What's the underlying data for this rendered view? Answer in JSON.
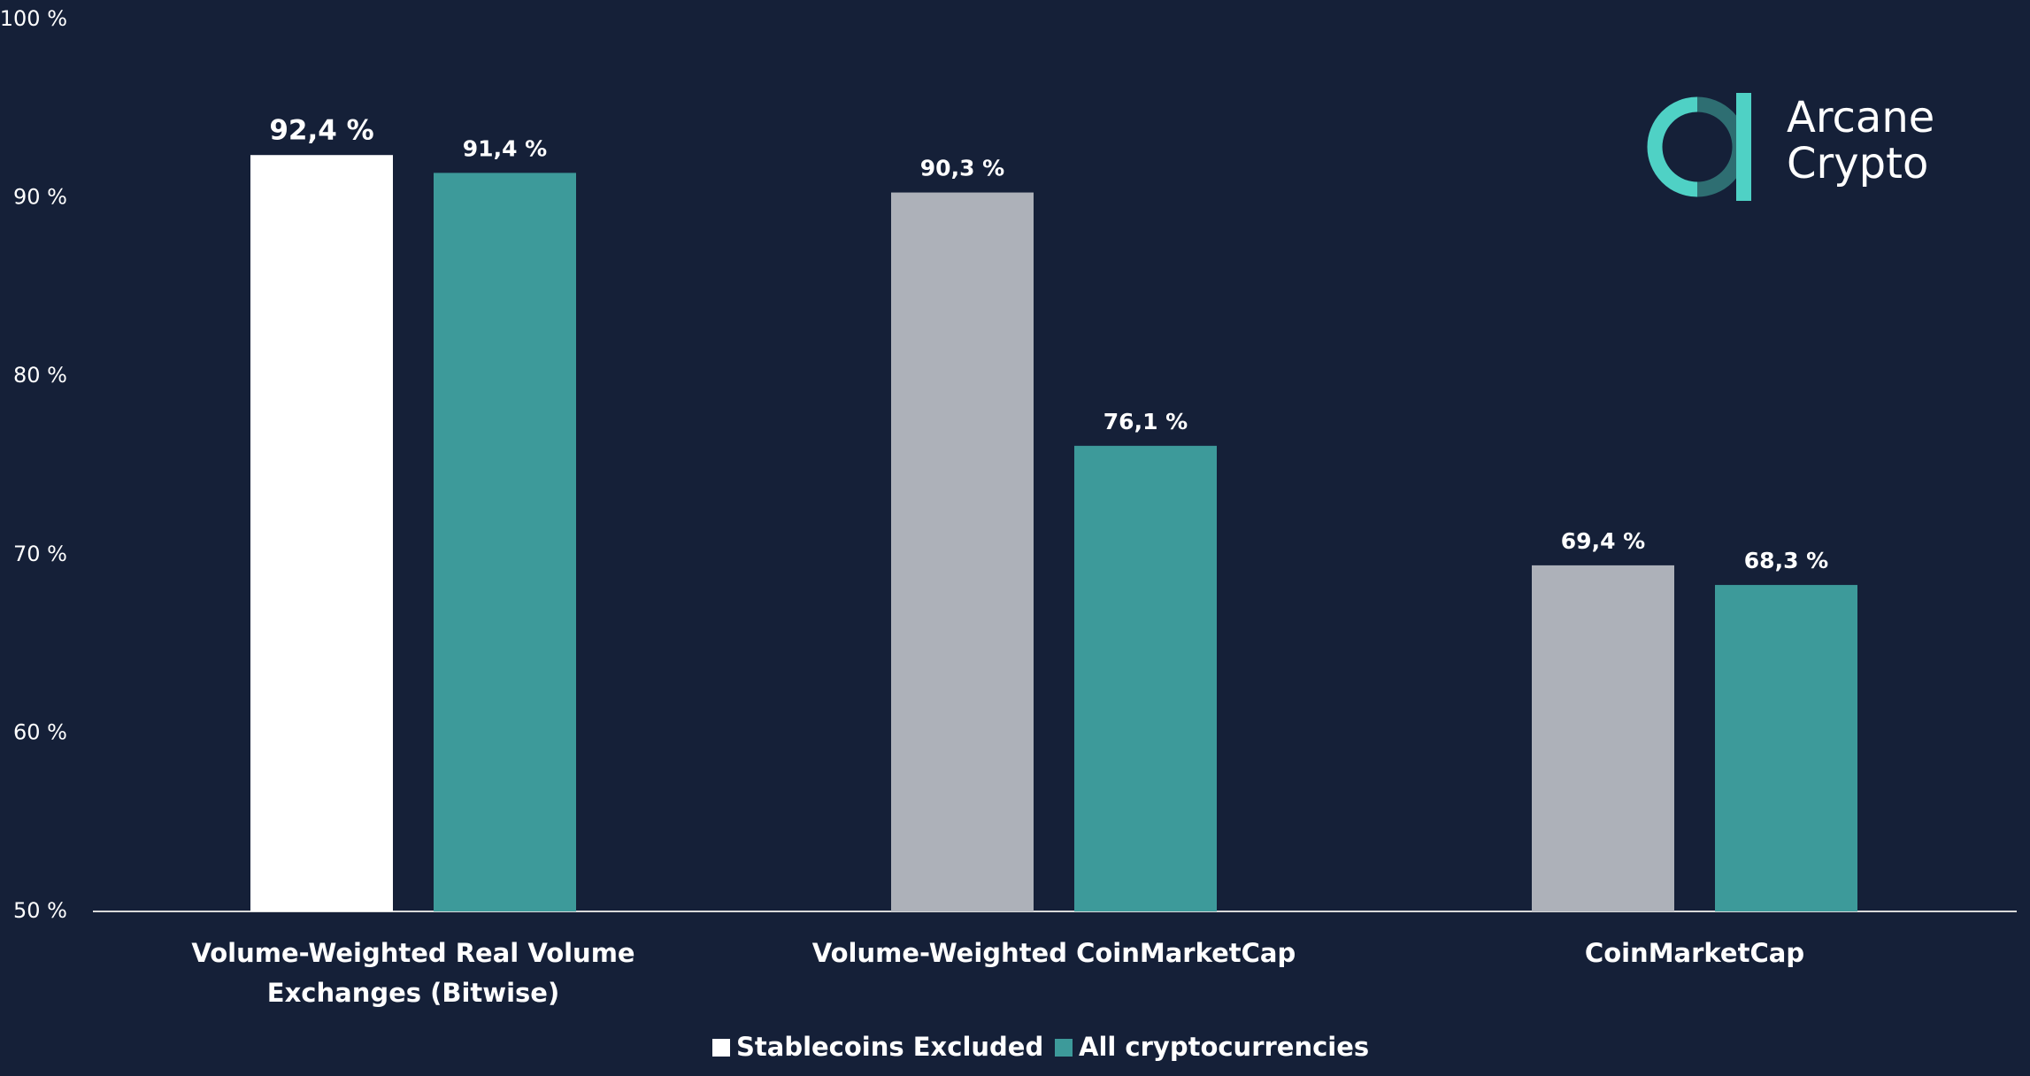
{
  "chart_data": {
    "type": "bar",
    "categories": [
      "Volume-Weighted Real Volume Exchanges (Bitwise)",
      "Volume-Weighted CoinMarketCap",
      "CoinMarketCap"
    ],
    "series": [
      {
        "name": "Stablecoins Excluded",
        "color": "#ffffff",
        "colors": [
          "#ffffff",
          "#adb1b9",
          "#adb1b9"
        ],
        "values": [
          92.4,
          90.3,
          69.4
        ],
        "value_labels": [
          "92,4 %",
          "90,3 %",
          "69,4 %"
        ]
      },
      {
        "name": "All cryptocurrencies",
        "color": "#3d9a9a",
        "values": [
          91.4,
          76.1,
          68.3
        ],
        "value_labels": [
          "91,4 %",
          "76,1 %",
          "68,3 %"
        ]
      }
    ],
    "ylim": [
      50,
      100
    ],
    "yticks": [
      {
        "value": 50,
        "label": "50 %"
      },
      {
        "value": 60,
        "label": "60 %"
      },
      {
        "value": 70,
        "label": "70 %"
      },
      {
        "value": 80,
        "label": "80 %"
      },
      {
        "value": 90,
        "label": "90 %"
      },
      {
        "value": 100,
        "label": "100 %"
      }
    ],
    "grid": false
  },
  "logo": {
    "line1": "Arcane",
    "line2": "Crypto"
  }
}
